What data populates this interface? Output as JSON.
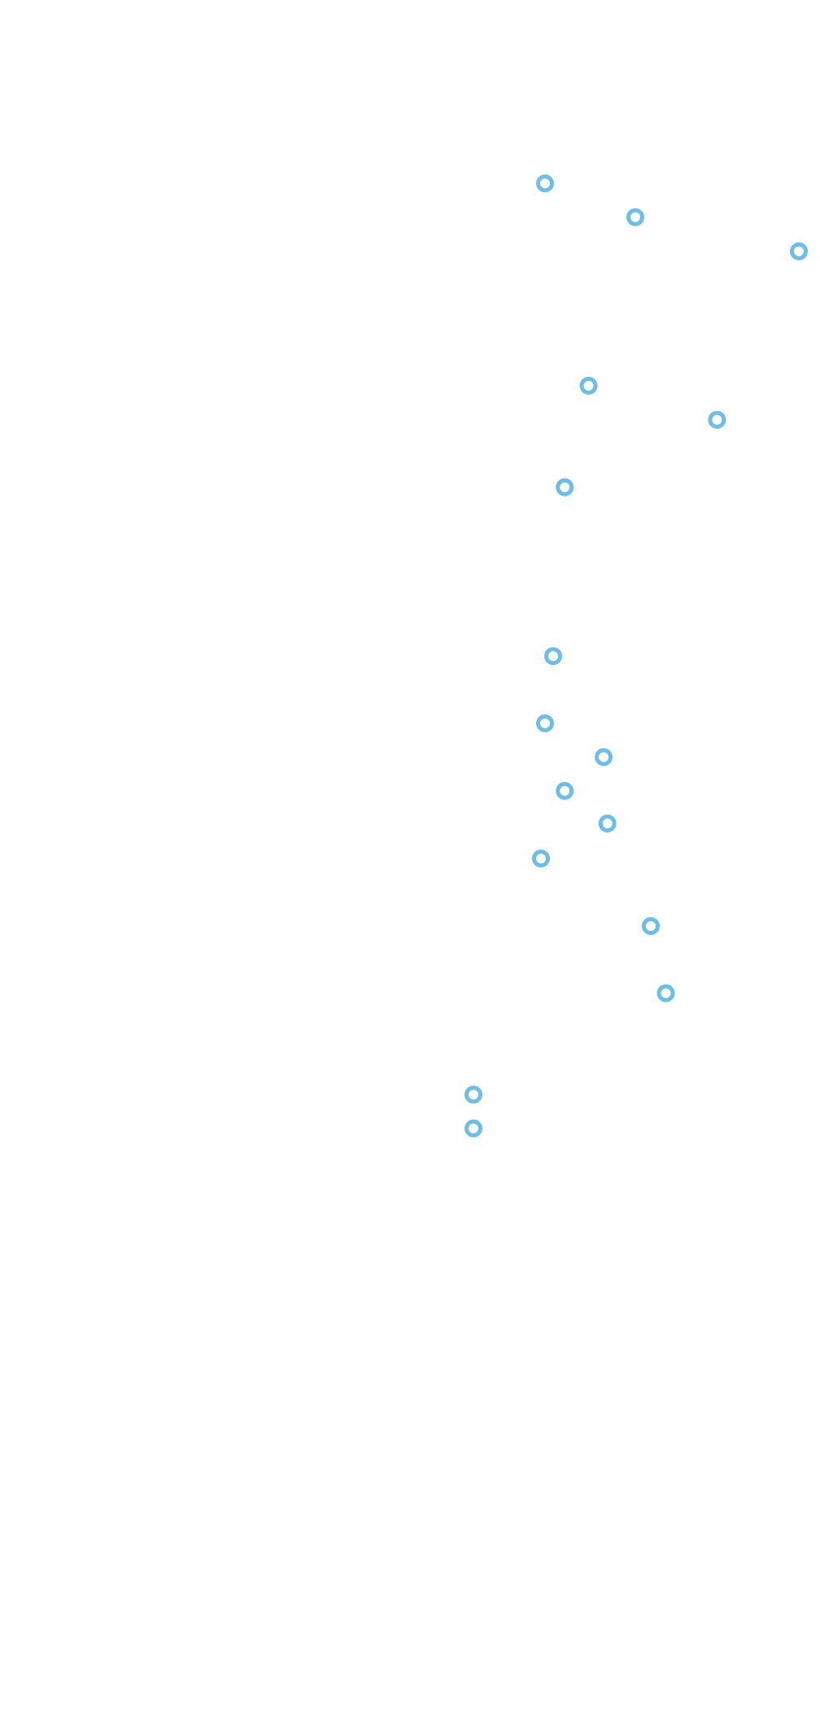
{
  "chart_data": {
    "type": "scatter",
    "title": "",
    "xlabel": "",
    "ylabel": "",
    "grid": false,
    "legend": "none",
    "series": [
      {
        "color": "#6dbde6",
        "marker": "ring",
        "points": [
          {
            "x": 0.6647,
            "y": 0.1071
          },
          {
            "x": 0.7748,
            "y": 0.1268
          },
          {
            "x": 0.9742,
            "y": 0.1467
          },
          {
            "x": 0.7178,
            "y": 0.2252
          },
          {
            "x": 0.8744,
            "y": 0.2451
          },
          {
            "x": 0.6887,
            "y": 0.2844
          },
          {
            "x": 0.6746,
            "y": 0.383
          },
          {
            "x": 0.6647,
            "y": 0.4223
          },
          {
            "x": 0.7361,
            "y": 0.442
          },
          {
            "x": 0.6887,
            "y": 0.4617
          },
          {
            "x": 0.7408,
            "y": 0.4807
          },
          {
            "x": 0.6597,
            "y": 0.5012
          },
          {
            "x": 0.7937,
            "y": 0.5406
          },
          {
            "x": 0.812,
            "y": 0.5798
          },
          {
            "x": 0.5774,
            "y": 0.639
          },
          {
            "x": 0.5774,
            "y": 0.6587
          }
        ]
      }
    ]
  }
}
